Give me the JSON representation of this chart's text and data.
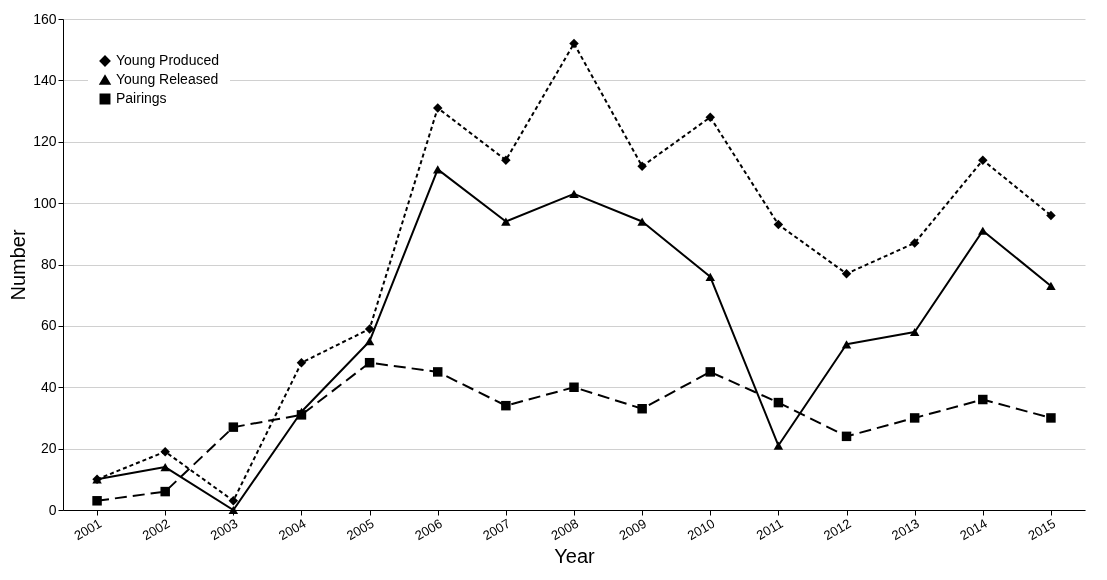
{
  "chart_data": {
    "type": "line",
    "xlabel": "Year",
    "ylabel": "Number",
    "categories": [
      "2001",
      "2002",
      "2003",
      "2004",
      "2005",
      "2006",
      "2007",
      "2008",
      "2009",
      "2010",
      "2011",
      "2012",
      "2013",
      "2014",
      "2015"
    ],
    "series": [
      {
        "name": "Young Produced",
        "color": "#000000",
        "marker": "diamond",
        "line_style": "dotted",
        "values": [
          10,
          19,
          3,
          48,
          59,
          131,
          114,
          152,
          112,
          128,
          93,
          77,
          87,
          114,
          96
        ]
      },
      {
        "name": "Young Released",
        "color": "#000000",
        "marker": "triangle",
        "line_style": "solid",
        "values": [
          10,
          14,
          0,
          32,
          55,
          111,
          94,
          103,
          94,
          76,
          21,
          54,
          58,
          91,
          73
        ]
      },
      {
        "name": "Pairings",
        "color": "#000000",
        "marker": "square",
        "line_style": "dashed",
        "values": [
          3,
          6,
          27,
          31,
          48,
          45,
          34,
          40,
          33,
          45,
          35,
          24,
          30,
          36,
          30
        ]
      }
    ],
    "ylim": [
      0,
      160
    ],
    "yticks": [
      0,
      20,
      40,
      60,
      80,
      100,
      120,
      140,
      160
    ],
    "grid": "y",
    "legend": "top left"
  }
}
